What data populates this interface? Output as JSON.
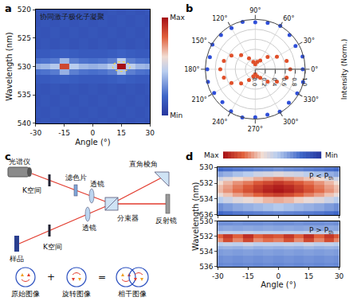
{
  "chart_data": [
    {
      "panel": "a",
      "type": "heatmap",
      "title": "协同激子极化子凝聚",
      "xlabel": "Angle (°)",
      "ylabel": "Wavelength (nm)",
      "xlim": [
        -30,
        30
      ],
      "xticks": [
        -30,
        -15,
        0,
        15,
        30
      ],
      "ylim": [
        540,
        520
      ],
      "yticks": [
        520,
        525,
        530,
        535,
        540
      ],
      "x": [
        -30,
        -25,
        -20,
        -15,
        -10,
        -5,
        0,
        5,
        10,
        15,
        20,
        25,
        30
      ],
      "y": [
        520,
        522,
        524,
        526,
        528,
        529,
        530,
        531,
        532,
        534,
        536,
        538,
        540
      ],
      "z": [
        [
          0.13,
          0.12,
          0.13,
          0.12,
          0.13,
          0.12,
          0.13,
          0.12,
          0.13,
          0.12,
          0.13,
          0.12,
          0.13
        ],
        [
          0.12,
          0.13,
          0.12,
          0.13,
          0.12,
          0.13,
          0.12,
          0.13,
          0.12,
          0.13,
          0.12,
          0.13,
          0.12
        ],
        [
          0.13,
          0.12,
          0.13,
          0.12,
          0.13,
          0.12,
          0.13,
          0.12,
          0.13,
          0.12,
          0.13,
          0.12,
          0.13
        ],
        [
          0.12,
          0.13,
          0.12,
          0.13,
          0.12,
          0.13,
          0.12,
          0.13,
          0.12,
          0.13,
          0.12,
          0.13,
          0.12
        ],
        [
          0.15,
          0.15,
          0.16,
          0.17,
          0.16,
          0.15,
          0.15,
          0.15,
          0.16,
          0.18,
          0.16,
          0.15,
          0.15
        ],
        [
          0.22,
          0.23,
          0.25,
          0.4,
          0.26,
          0.23,
          0.22,
          0.23,
          0.26,
          0.45,
          0.26,
          0.23,
          0.22
        ],
        [
          0.38,
          0.4,
          0.44,
          0.86,
          0.45,
          0.4,
          0.38,
          0.4,
          0.45,
          1.0,
          0.46,
          0.4,
          0.38
        ],
        [
          0.22,
          0.23,
          0.25,
          0.38,
          0.26,
          0.23,
          0.22,
          0.23,
          0.26,
          0.42,
          0.26,
          0.23,
          0.22
        ],
        [
          0.15,
          0.15,
          0.16,
          0.17,
          0.16,
          0.15,
          0.15,
          0.15,
          0.16,
          0.18,
          0.16,
          0.15,
          0.15
        ],
        [
          0.13,
          0.12,
          0.13,
          0.12,
          0.13,
          0.12,
          0.13,
          0.12,
          0.13,
          0.12,
          0.13,
          0.12,
          0.13
        ],
        [
          0.12,
          0.13,
          0.12,
          0.13,
          0.12,
          0.13,
          0.12,
          0.13,
          0.12,
          0.13,
          0.12,
          0.13,
          0.12
        ],
        [
          0.13,
          0.12,
          0.13,
          0.12,
          0.13,
          0.12,
          0.13,
          0.12,
          0.13,
          0.12,
          0.13,
          0.12,
          0.13
        ],
        [
          0.12,
          0.13,
          0.12,
          0.13,
          0.12,
          0.13,
          0.12,
          0.13,
          0.12,
          0.13,
          0.12,
          0.13,
          0.12
        ]
      ],
      "colorbar": {
        "zlim": [
          0,
          1
        ],
        "ticks": [
          {
            "value": 1,
            "label": "Max"
          },
          {
            "value": 0,
            "label": "Min"
          }
        ]
      },
      "highlight": {
        "x": 15,
        "y": 530
      }
    },
    {
      "panel": "b",
      "type": "polar_scatter",
      "rlabel": "Intensity (Norm.)",
      "rlim": [
        0,
        1.0
      ],
      "rticks": [
        {
          "value": 0,
          "label": "0.0"
        },
        {
          "value": 0.2,
          "label": "0.2"
        },
        {
          "value": 0.4,
          "label": "0.4"
        },
        {
          "value": 0.6,
          "label": "0.6"
        },
        {
          "value": 0.8,
          "label": "0.8"
        },
        {
          "value": 1.0,
          "label": "1.0"
        }
      ],
      "theta_ticks": [
        {
          "value": 0,
          "label": "0°"
        },
        {
          "value": 30,
          "label": "30°"
        },
        {
          "value": 60,
          "label": "60°"
        },
        {
          "value": 90,
          "label": "90°"
        },
        {
          "value": 120,
          "label": "120°"
        },
        {
          "value": 150,
          "label": "150°"
        },
        {
          "value": 180,
          "label": "180°"
        },
        {
          "value": 210,
          "label": "210°"
        },
        {
          "value": 240,
          "label": "240°"
        },
        {
          "value": 270,
          "label": "270°"
        },
        {
          "value": 300,
          "label": "300°"
        },
        {
          "value": 330,
          "label": "330°"
        }
      ],
      "series": [
        {
          "color": "#2f4fd8",
          "theta": [
            0,
            15,
            30,
            45,
            60,
            75,
            90,
            105,
            120,
            135,
            150,
            165,
            180,
            195,
            210,
            225,
            240,
            255,
            270,
            285,
            300,
            315,
            330,
            345
          ],
          "values": [
            0.95,
            0.98,
            0.93,
            0.97,
            1.0,
            0.96,
            0.94,
            0.98,
            0.95,
            0.97,
            0.99,
            0.94,
            0.96,
            0.98,
            0.95,
            0.93,
            0.97,
            1.0,
            0.96,
            0.94,
            0.98,
            0.95,
            0.97,
            0.99
          ]
        },
        {
          "color": "#e0502a",
          "theta": [
            0,
            15,
            30,
            45,
            60,
            75,
            90,
            105,
            120,
            135,
            150,
            165,
            180,
            195,
            210,
            225,
            240,
            255,
            270,
            285,
            300,
            315,
            330,
            345
          ],
          "values": [
            0.7,
            0.65,
            0.5,
            0.35,
            0.2,
            0.15,
            0.1,
            0.15,
            0.25,
            0.4,
            0.55,
            0.65,
            0.7,
            0.65,
            0.55,
            0.4,
            0.25,
            0.15,
            0.1,
            0.15,
            0.2,
            0.35,
            0.5,
            0.65
          ]
        }
      ]
    },
    {
      "panel": "d",
      "type": "heatmap_stack",
      "xlabel": "Angle (°)",
      "ylabel": "Wavelength (nm)",
      "xlim": [
        -30,
        30
      ],
      "xticks": [
        -30,
        -15,
        0,
        15,
        30
      ],
      "ylim": [
        536,
        530
      ],
      "yticks": [
        530,
        532,
        534,
        536
      ],
      "x": [
        -30,
        -25,
        -20,
        -15,
        -10,
        -5,
        0,
        5,
        10,
        15,
        20,
        25,
        30
      ],
      "y": [
        530,
        531,
        531.5,
        532,
        532.5,
        533,
        533.5,
        534,
        535,
        536
      ],
      "colorbar": {
        "zlim": [
          0,
          1
        ],
        "ticks": [
          {
            "value": 1,
            "label": "Max"
          },
          {
            "value": 0,
            "label": "Min"
          }
        ]
      },
      "panels": [
        {
          "annotation": {
            "text": "P < P",
            "sub": "th"
          },
          "tick_labels": "y",
          "z": [
            [
              0.2,
              0.22,
              0.24,
              0.25,
              0.27,
              0.28,
              0.3,
              0.28,
              0.27,
              0.25,
              0.24,
              0.22,
              0.2
            ],
            [
              0.35,
              0.38,
              0.42,
              0.45,
              0.5,
              0.52,
              0.55,
              0.52,
              0.5,
              0.46,
              0.42,
              0.38,
              0.35
            ],
            [
              0.5,
              0.55,
              0.6,
              0.63,
              0.68,
              0.72,
              0.75,
              0.72,
              0.68,
              0.64,
              0.6,
              0.55,
              0.5
            ],
            [
              0.6,
              0.66,
              0.72,
              0.76,
              0.82,
              0.86,
              0.9,
              0.86,
              0.82,
              0.77,
              0.72,
              0.66,
              0.6
            ],
            [
              0.65,
              0.7,
              0.76,
              0.82,
              0.88,
              0.93,
              0.96,
              0.93,
              0.88,
              0.82,
              0.76,
              0.7,
              0.65
            ],
            [
              0.66,
              0.72,
              0.78,
              0.84,
              0.9,
              0.95,
              0.98,
              0.95,
              0.9,
              0.84,
              0.78,
              0.72,
              0.66
            ],
            [
              0.58,
              0.64,
              0.7,
              0.75,
              0.8,
              0.85,
              0.88,
              0.85,
              0.8,
              0.75,
              0.7,
              0.64,
              0.58
            ],
            [
              0.45,
              0.5,
              0.55,
              0.58,
              0.62,
              0.66,
              0.68,
              0.66,
              0.62,
              0.58,
              0.55,
              0.5,
              0.45
            ],
            [
              0.3,
              0.33,
              0.36,
              0.38,
              0.4,
              0.42,
              0.44,
              0.42,
              0.4,
              0.38,
              0.36,
              0.33,
              0.3
            ],
            [
              0.2,
              0.22,
              0.24,
              0.25,
              0.26,
              0.27,
              0.28,
              0.27,
              0.26,
              0.25,
              0.24,
              0.22,
              0.2
            ]
          ]
        },
        {
          "annotation": {
            "text": "P > P",
            "sub": "th"
          },
          "z": [
            [
              0.3,
              0.3,
              0.31,
              0.3,
              0.3,
              0.31,
              0.3,
              0.3,
              0.31,
              0.3,
              0.3,
              0.31,
              0.3
            ],
            [
              0.35,
              0.36,
              0.35,
              0.36,
              0.35,
              0.36,
              0.35,
              0.36,
              0.35,
              0.36,
              0.35,
              0.36,
              0.35
            ],
            [
              0.45,
              0.47,
              0.46,
              0.48,
              0.46,
              0.47,
              0.46,
              0.47,
              0.46,
              0.48,
              0.46,
              0.47,
              0.45
            ],
            [
              0.8,
              0.9,
              0.8,
              0.92,
              0.8,
              0.85,
              0.82,
              0.9,
              0.8,
              0.92,
              0.8,
              0.9,
              0.82
            ],
            [
              0.72,
              0.85,
              0.74,
              0.86,
              0.73,
              0.78,
              0.75,
              0.84,
              0.73,
              0.86,
              0.74,
              0.85,
              0.74
            ],
            [
              0.45,
              0.48,
              0.46,
              0.5,
              0.46,
              0.47,
              0.46,
              0.48,
              0.46,
              0.5,
              0.46,
              0.48,
              0.45
            ],
            [
              0.38,
              0.39,
              0.38,
              0.4,
              0.38,
              0.39,
              0.38,
              0.39,
              0.38,
              0.4,
              0.38,
              0.39,
              0.38
            ],
            [
              0.33,
              0.34,
              0.33,
              0.34,
              0.33,
              0.34,
              0.33,
              0.34,
              0.33,
              0.34,
              0.33,
              0.34,
              0.33
            ],
            [
              0.3,
              0.31,
              0.3,
              0.31,
              0.3,
              0.31,
              0.3,
              0.31,
              0.3,
              0.31,
              0.3,
              0.31,
              0.3
            ],
            [
              0.28,
              0.29,
              0.28,
              0.29,
              0.28,
              0.29,
              0.28,
              0.29,
              0.28,
              0.29,
              0.28,
              0.29,
              0.28
            ]
          ]
        }
      ]
    }
  ],
  "diagram": {
    "panel": "c",
    "labels": {
      "spectrometer": "光谱仪",
      "kspace_top": "K空间",
      "filter": "滤色片",
      "lens_top": "透镜",
      "prism": "直角棱角",
      "beam_splitter": "分束器",
      "mirror": "反射镜",
      "lens_bottom": "透镜",
      "kspace_bottom": "K空间",
      "sample": "样品"
    },
    "images": [
      "原始图像",
      "旋转图像",
      "相干图像"
    ],
    "operators": [
      "+",
      "="
    ]
  }
}
